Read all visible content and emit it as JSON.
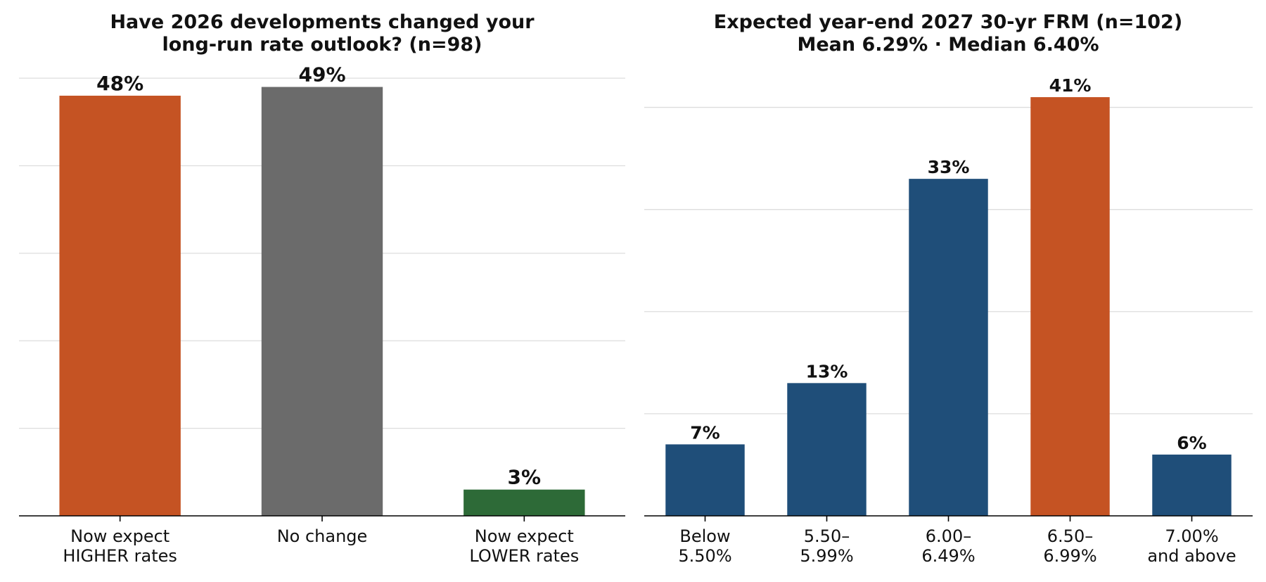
{
  "chart_data": [
    {
      "type": "bar",
      "title": [
        "Have 2026 developments changed your",
        "long-run rate outlook? (n=98)"
      ],
      "categories": [
        [
          "Now expect",
          "HIGHER rates"
        ],
        [
          "No change"
        ],
        [
          "Now expect",
          "LOWER rates"
        ]
      ],
      "values": [
        48,
        49,
        3
      ],
      "data_labels": [
        "48%",
        "49%",
        "3%"
      ],
      "colors": [
        "#c55323",
        "#6b6b6b",
        "#2d6a37"
      ],
      "ylim": [
        0,
        52.5
      ],
      "yticks": [
        0,
        10,
        20,
        30,
        40,
        50
      ],
      "grid": "y",
      "ylabel": "",
      "xlabel": ""
    },
    {
      "type": "bar",
      "title": [
        "Expected year-end 2027 30-yr FRM (n=102)",
        "Mean 6.29% · Median 6.40%"
      ],
      "categories": [
        [
          "Below",
          "5.50%"
        ],
        [
          "5.50–",
          "5.99%"
        ],
        [
          "6.00–",
          "6.49%"
        ],
        [
          "6.50–",
          "6.99%"
        ],
        [
          "7.00%",
          "and above"
        ]
      ],
      "values": [
        7,
        13,
        33,
        41,
        6
      ],
      "data_labels": [
        "7%",
        "13%",
        "33%",
        "41%",
        "6%"
      ],
      "colors": [
        "#1f4e79",
        "#1f4e79",
        "#1f4e79",
        "#c55323",
        "#1f4e79"
      ],
      "ylim": [
        0,
        45
      ],
      "yticks": [
        0,
        10,
        20,
        30,
        40
      ],
      "grid": "y",
      "ylabel": "",
      "xlabel": ""
    }
  ]
}
